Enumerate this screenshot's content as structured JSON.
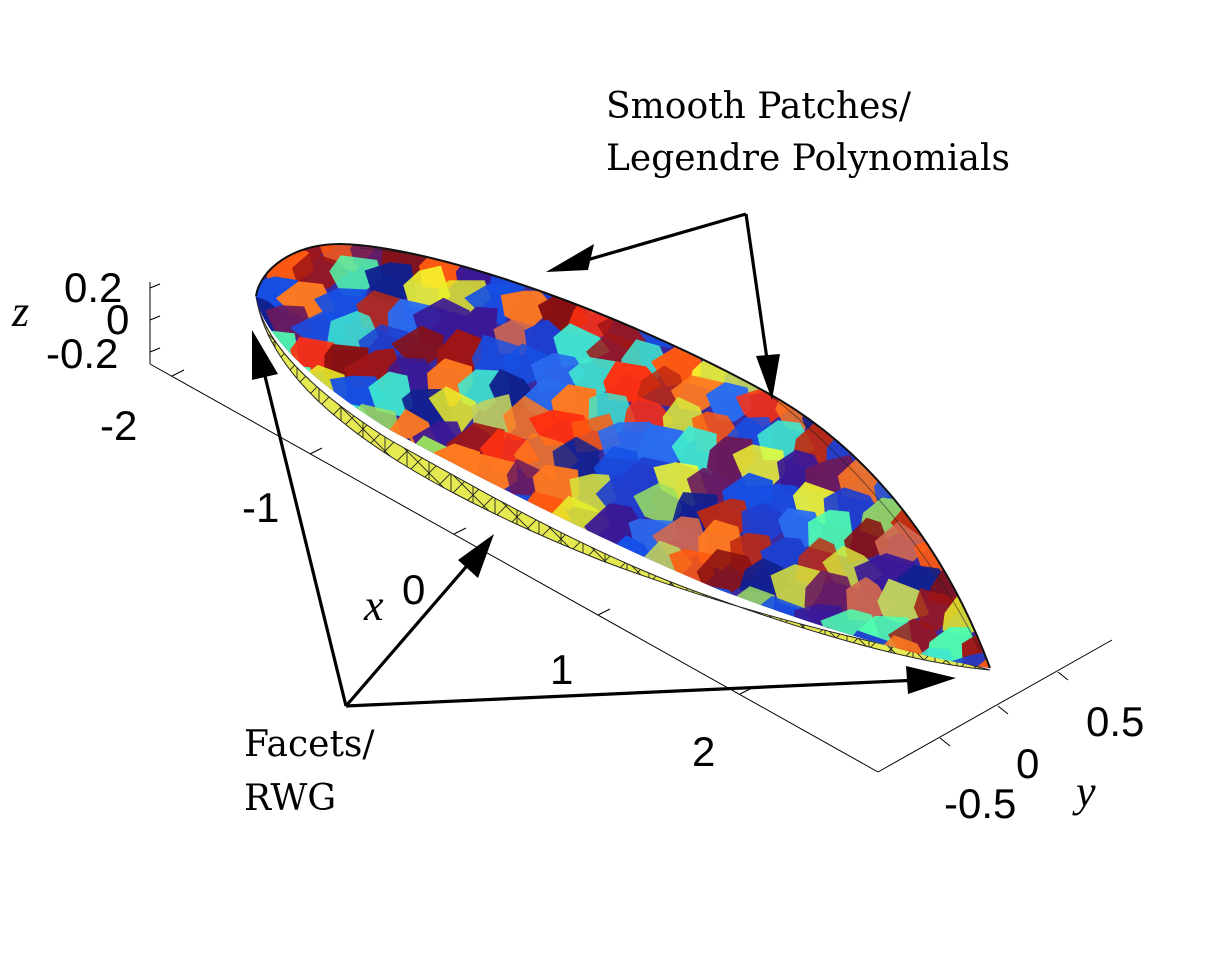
{
  "axes": {
    "x": {
      "label": "x",
      "ticks": [
        "-2",
        "-1",
        "0",
        "1",
        "2"
      ]
    },
    "y": {
      "label": "y",
      "ticks": [
        "-0.5",
        "0",
        "0.5"
      ]
    },
    "z": {
      "label": "z",
      "ticks": [
        "0.2",
        "0",
        "-0.2"
      ]
    }
  },
  "annotations": {
    "top": {
      "line1": "Smooth Patches/",
      "line2": "Legendre Polynomials"
    },
    "bottom": {
      "line1": "Facets/",
      "line2": "RWG"
    }
  },
  "colors": {
    "facet_band": "#e6ea52",
    "patch_palette": [
      "#1e3fd0",
      "#1550e6",
      "#2a6cf0",
      "#10208f",
      "#3a1896",
      "#6a1a5e",
      "#8a1010",
      "#a01515",
      "#c02a10",
      "#ff5a10",
      "#ff7a20",
      "#ff3010",
      "#f5ff30",
      "#e7ef2a",
      "#d8e63c",
      "#50ffb0",
      "#40e8d0",
      "#9be060",
      "#c0d060",
      "#d06850"
    ]
  }
}
